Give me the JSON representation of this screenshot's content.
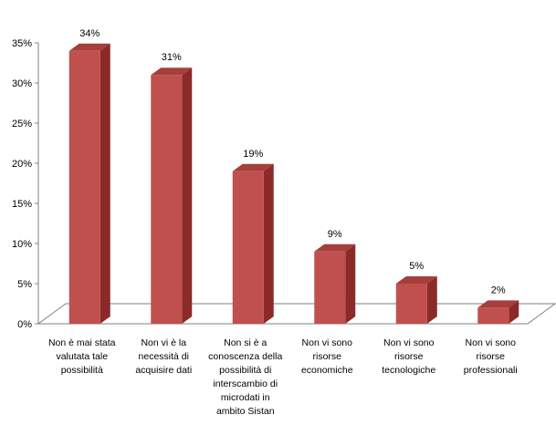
{
  "chart_data": {
    "type": "bar",
    "categories": [
      "Non è mai stata valutata tale possibilità",
      "Non vi è la necessità di acquisire dati",
      "Non si è a conoscenza della possibilità di interscambio di microdati in ambito Sistan",
      "Non vi sono risorse economiche",
      "Non vi sono risorse tecnologiche",
      "Non vi sono risorse professionali"
    ],
    "category_lines": [
      [
        "Non è mai stata",
        "valutata tale",
        "possibilità"
      ],
      [
        "Non vi è la",
        "necessità di",
        "acquisire dati"
      ],
      [
        "Non si è a",
        "conoscenza della",
        "possibilità di",
        "interscambio di",
        "microdati in",
        "ambito Sistan"
      ],
      [
        "Non vi sono",
        "risorse",
        "economiche"
      ],
      [
        "Non vi sono",
        "risorse",
        "tecnologiche"
      ],
      [
        "Non vi sono",
        "risorse",
        "professionali"
      ]
    ],
    "values": [
      34,
      31,
      19,
      9,
      5,
      2
    ],
    "data_labels": [
      "34%",
      "31%",
      "19%",
      "9%",
      "5%",
      "2%"
    ],
    "y_ticks": [
      "0%",
      "5%",
      "10%",
      "15%",
      "20%",
      "25%",
      "30%",
      "35%"
    ],
    "ylim": [
      0,
      35
    ],
    "three_d": true,
    "grid": false,
    "legend": "none",
    "colors": {
      "bar_front": "#c0504d",
      "bar_side": "#8b2a28",
      "bar_top": "#a63e3b",
      "axis": "#808080"
    }
  }
}
